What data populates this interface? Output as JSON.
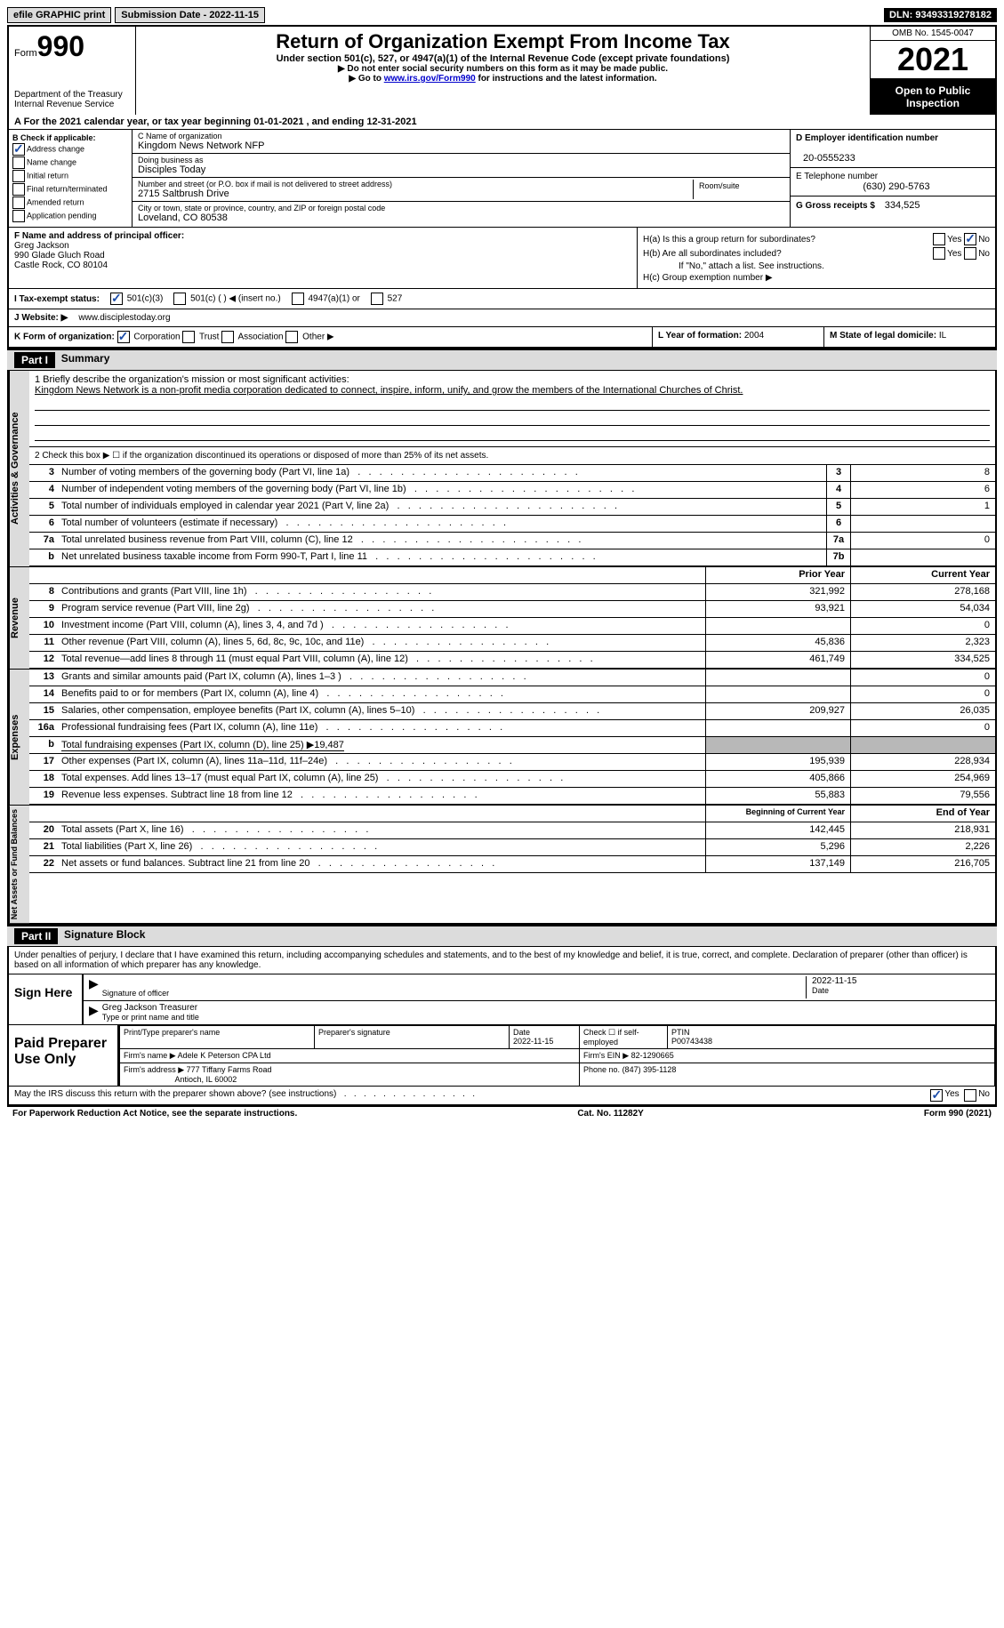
{
  "meta": {
    "efile_label": "efile GRAPHIC print",
    "submission_date_label": "Submission Date - 2022-11-15",
    "dln_label": "DLN: 93493319278182",
    "form_label": "Form",
    "form_number": "990",
    "omb": "OMB No. 1545-0047",
    "tax_year": "2021",
    "open_public": "Open to Public Inspection",
    "dept": "Department of the Treasury",
    "irs": "Internal Revenue Service",
    "title": "Return of Organization Exempt From Income Tax",
    "subtitle": "Under section 501(c), 527, or 4947(a)(1) of the Internal Revenue Code (except private foundations)",
    "note1": "▶ Do not enter social security numbers on this form as it may be made public.",
    "note2_pre": "▶ Go to ",
    "note2_link": "www.irs.gov/Form990",
    "note2_post": " for instructions and the latest information."
  },
  "line_a": "A For the 2021 calendar year, or tax year beginning 01-01-2021    , and ending 12-31-2021",
  "box_b": {
    "header": "B Check if applicable:",
    "opts": [
      {
        "label": "Address change",
        "checked": true
      },
      {
        "label": "Name change",
        "checked": false
      },
      {
        "label": "Initial return",
        "checked": false
      },
      {
        "label": "Final return/terminated",
        "checked": false
      },
      {
        "label": "Amended return",
        "checked": false
      },
      {
        "label": "Application pending",
        "checked": false
      }
    ]
  },
  "box_c": {
    "name_label": "C Name of organization",
    "name": "Kingdom News Network NFP",
    "dba_label": "Doing business as",
    "dba": "Disciples Today",
    "addr_label": "Number and street (or P.O. box if mail is not delivered to street address)",
    "addr": "2715 Saltbrush Drive",
    "room_label": "Room/suite",
    "city_label": "City or town, state or province, country, and ZIP or foreign postal code",
    "city": "Loveland, CO  80538"
  },
  "box_d": {
    "ein_label": "D Employer identification number",
    "ein": "20-0555233",
    "phone_label": "E Telephone number",
    "phone": "(630) 290-5763",
    "gross_label": "G Gross receipts $",
    "gross": "334,525"
  },
  "box_f": {
    "label": "F Name and address of principal officer:",
    "name": "Greg Jackson",
    "addr1": "990 Glade Gluch Road",
    "addr2": "Castle Rock, CO  80104"
  },
  "box_h": {
    "a_label": "H(a)  Is this a group return for subordinates?",
    "a_yes": "Yes",
    "a_no": "No",
    "a_checked": "no",
    "b_label": "H(b)  Are all subordinates included?",
    "b_yes": "Yes",
    "b_no": "No",
    "b_note": "If \"No,\" attach a list. See instructions.",
    "c_label": "H(c)  Group exemption number ▶"
  },
  "box_i": {
    "label": "I   Tax-exempt status:",
    "opts": [
      "501(c)(3)",
      "501(c) (  ) ◀ (insert no.)",
      "4947(a)(1) or",
      "527"
    ],
    "checked": 0
  },
  "box_j": {
    "label": "J   Website: ▶",
    "val": "www.disciplestoday.org"
  },
  "box_k": {
    "label": "K Form of organization:",
    "opts": [
      "Corporation",
      "Trust",
      "Association",
      "Other ▶"
    ],
    "checked": 0
  },
  "box_l": {
    "label": "L Year of formation:",
    "val": "2004"
  },
  "box_m": {
    "label": "M State of legal domicile:",
    "val": "IL"
  },
  "part1": {
    "header": "Part I",
    "title": "Summary",
    "mission_label": "1   Briefly describe the organization's mission or most significant activities:",
    "mission": "Kingdom News Network is a non-profit media corporation dedicated to connect, inspire, inform, unify, and grow the members of the International Churches of Christ.",
    "line2": "2   Check this box ▶ ☐  if the organization discontinued its operations or disposed of more than 25% of its net assets."
  },
  "sections": {
    "gov": {
      "label": "Activities & Governance",
      "lines": [
        {
          "n": "3",
          "desc": "Number of voting members of the governing body (Part VI, line 1a)",
          "box": "3",
          "val": "8"
        },
        {
          "n": "4",
          "desc": "Number of independent voting members of the governing body (Part VI, line 1b)",
          "box": "4",
          "val": "6"
        },
        {
          "n": "5",
          "desc": "Total number of individuals employed in calendar year 2021 (Part V, line 2a)",
          "box": "5",
          "val": "1"
        },
        {
          "n": "6",
          "desc": "Total number of volunteers (estimate if necessary)",
          "box": "6",
          "val": ""
        },
        {
          "n": "7a",
          "desc": "Total unrelated business revenue from Part VIII, column (C), line 12",
          "box": "7a",
          "val": "0"
        },
        {
          "n": "b",
          "desc": "Net unrelated business taxable income from Form 990-T, Part I, line 11",
          "box": "7b",
          "val": ""
        }
      ]
    },
    "rev": {
      "label": "Revenue",
      "head_prior": "Prior Year",
      "head_curr": "Current Year",
      "lines": [
        {
          "n": "8",
          "desc": "Contributions and grants (Part VIII, line 1h)",
          "prior": "321,992",
          "curr": "278,168"
        },
        {
          "n": "9",
          "desc": "Program service revenue (Part VIII, line 2g)",
          "prior": "93,921",
          "curr": "54,034"
        },
        {
          "n": "10",
          "desc": "Investment income (Part VIII, column (A), lines 3, 4, and 7d )",
          "prior": "",
          "curr": "0"
        },
        {
          "n": "11",
          "desc": "Other revenue (Part VIII, column (A), lines 5, 6d, 8c, 9c, 10c, and 11e)",
          "prior": "45,836",
          "curr": "2,323"
        },
        {
          "n": "12",
          "desc": "Total revenue—add lines 8 through 11 (must equal Part VIII, column (A), line 12)",
          "prior": "461,749",
          "curr": "334,525"
        }
      ]
    },
    "exp": {
      "label": "Expenses",
      "lines": [
        {
          "n": "13",
          "desc": "Grants and similar amounts paid (Part IX, column (A), lines 1–3 )",
          "prior": "",
          "curr": "0"
        },
        {
          "n": "14",
          "desc": "Benefits paid to or for members (Part IX, column (A), line 4)",
          "prior": "",
          "curr": "0"
        },
        {
          "n": "15",
          "desc": "Salaries, other compensation, employee benefits (Part IX, column (A), lines 5–10)",
          "prior": "209,927",
          "curr": "26,035"
        },
        {
          "n": "16a",
          "desc": "Professional fundraising fees (Part IX, column (A), line 11e)",
          "prior": "",
          "curr": "0"
        },
        {
          "n": "b",
          "desc": "Total fundraising expenses (Part IX, column (D), line 25) ▶19,487",
          "prior": null,
          "curr": null,
          "shaded": true
        },
        {
          "n": "17",
          "desc": "Other expenses (Part IX, column (A), lines 11a–11d, 11f–24e)",
          "prior": "195,939",
          "curr": "228,934"
        },
        {
          "n": "18",
          "desc": "Total expenses. Add lines 13–17 (must equal Part IX, column (A), line 25)",
          "prior": "405,866",
          "curr": "254,969"
        },
        {
          "n": "19",
          "desc": "Revenue less expenses. Subtract line 18 from line 12",
          "prior": "55,883",
          "curr": "79,556"
        }
      ]
    },
    "net": {
      "label": "Net Assets or Fund Balances",
      "head_prior": "Beginning of Current Year",
      "head_curr": "End of Year",
      "lines": [
        {
          "n": "20",
          "desc": "Total assets (Part X, line 16)",
          "prior": "142,445",
          "curr": "218,931"
        },
        {
          "n": "21",
          "desc": "Total liabilities (Part X, line 26)",
          "prior": "5,296",
          "curr": "2,226"
        },
        {
          "n": "22",
          "desc": "Net assets or fund balances. Subtract line 21 from line 20",
          "prior": "137,149",
          "curr": "216,705"
        }
      ]
    }
  },
  "part2": {
    "header": "Part II",
    "title": "Signature Block",
    "penalty": "Under penalties of perjury, I declare that I have examined this return, including accompanying schedules and statements, and to the best of my knowledge and belief, it is true, correct, and complete. Declaration of preparer (other than officer) is based on all information of which preparer has any knowledge.",
    "sign_here": "Sign Here",
    "sig_off": "Signature of officer",
    "sig_date": "2022-11-15",
    "date_lbl": "Date",
    "officer": "Greg Jackson  Treasurer",
    "officer_lbl": "Type or print name and title",
    "paid_prep": "Paid Preparer Use Only",
    "prep_name_lbl": "Print/Type preparer's name",
    "prep_sig_lbl": "Preparer's signature",
    "prep_date_lbl": "Date",
    "prep_date": "2022-11-15",
    "self_emp": "Check ☐ if self-employed",
    "ptin_lbl": "PTIN",
    "ptin": "P00743438",
    "firm_name_lbl": "Firm's name    ▶",
    "firm_name": "Adele K Peterson CPA Ltd",
    "firm_ein_lbl": "Firm's EIN ▶",
    "firm_ein": "82-1290665",
    "firm_addr_lbl": "Firm's address ▶",
    "firm_addr1": "777 Tiffany Farms Road",
    "firm_addr2": "Antioch, IL  60002",
    "firm_phone_lbl": "Phone no.",
    "firm_phone": "(847) 395-1128",
    "discuss": "May the IRS discuss this return with the preparer shown above? (see instructions)",
    "discuss_yes": "Yes",
    "discuss_no": "No",
    "discuss_checked": "yes"
  },
  "footer": {
    "left": "For Paperwork Reduction Act Notice, see the separate instructions.",
    "mid": "Cat. No. 11282Y",
    "right": "Form 990 (2021)"
  },
  "colors": {
    "bg": "#ffffff",
    "header_bg": "#dcdcdc",
    "black": "#000000",
    "check": "#1a4ba8",
    "link": "#0000cc",
    "shaded": "#b8b8b8"
  }
}
